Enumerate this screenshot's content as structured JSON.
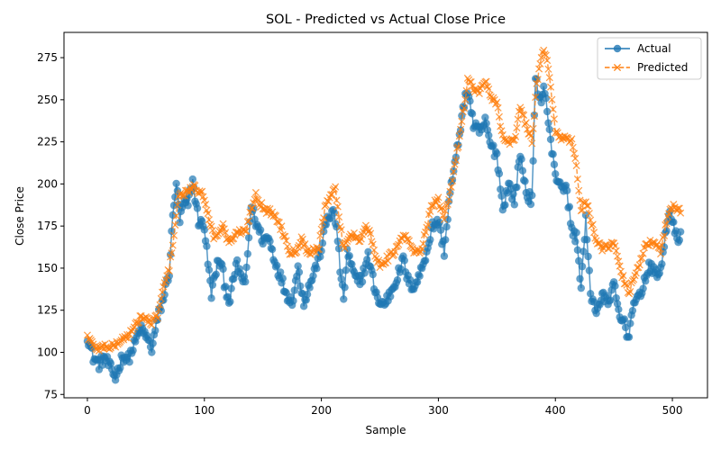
{
  "chart_data": {
    "type": "line",
    "title": "SOL - Predicted vs Actual Close Price",
    "xlabel": "Sample",
    "ylabel": "Close Price",
    "xlim": [
      -20,
      530
    ],
    "ylim": [
      73,
      290
    ],
    "x_ticks": [
      0,
      100,
      200,
      300,
      400,
      500
    ],
    "y_ticks": [
      75,
      100,
      125,
      150,
      175,
      200,
      225,
      250,
      275
    ],
    "grid": false,
    "legend_position": "top-right",
    "sample_count": 508,
    "series": [
      {
        "name": "Actual",
        "color": "#1f77b4",
        "marker": "circle",
        "linestyle": "solid",
        "anchors": [
          [
            0,
            110
          ],
          [
            5,
            97
          ],
          [
            10,
            93
          ],
          [
            15,
            97
          ],
          [
            20,
            90
          ],
          [
            24,
            85
          ],
          [
            30,
            98
          ],
          [
            35,
            96
          ],
          [
            40,
            104
          ],
          [
            45,
            114
          ],
          [
            50,
            110
          ],
          [
            55,
            102
          ],
          [
            60,
            120
          ],
          [
            65,
            132
          ],
          [
            70,
            148
          ],
          [
            73,
            180
          ],
          [
            76,
            201
          ],
          [
            79,
            178
          ],
          [
            82,
            188
          ],
          [
            86,
            188
          ],
          [
            90,
            202
          ],
          [
            95,
            178
          ],
          [
            100,
            175
          ],
          [
            103,
            153
          ],
          [
            106,
            135
          ],
          [
            109,
            145
          ],
          [
            112,
            155
          ],
          [
            115,
            150
          ],
          [
            118,
            138
          ],
          [
            122,
            130
          ],
          [
            125,
            145
          ],
          [
            128,
            152
          ],
          [
            131,
            146
          ],
          [
            135,
            140
          ],
          [
            140,
            187
          ],
          [
            145,
            175
          ],
          [
            150,
            167
          ],
          [
            155,
            168
          ],
          [
            160,
            155
          ],
          [
            165,
            145
          ],
          [
            170,
            135
          ],
          [
            175,
            130
          ],
          [
            180,
            150
          ],
          [
            185,
            130
          ],
          [
            190,
            140
          ],
          [
            195,
            150
          ],
          [
            200,
            162
          ],
          [
            205,
            180
          ],
          [
            210,
            183
          ],
          [
            213,
            175
          ],
          [
            216,
            150
          ],
          [
            219,
            130
          ],
          [
            222,
            160
          ],
          [
            226,
            150
          ],
          [
            230,
            142
          ],
          [
            235,
            145
          ],
          [
            240,
            157
          ],
          [
            245,
            140
          ],
          [
            250,
            128
          ],
          [
            255,
            130
          ],
          [
            260,
            137
          ],
          [
            265,
            145
          ],
          [
            270,
            155
          ],
          [
            275,
            140
          ],
          [
            280,
            140
          ],
          [
            285,
            148
          ],
          [
            290,
            160
          ],
          [
            295,
            175
          ],
          [
            300,
            178
          ],
          [
            305,
            160
          ],
          [
            310,
            195
          ],
          [
            315,
            215
          ],
          [
            320,
            240
          ],
          [
            325,
            257
          ],
          [
            330,
            235
          ],
          [
            335,
            230
          ],
          [
            340,
            237
          ],
          [
            345,
            222
          ],
          [
            350,
            218
          ],
          [
            355,
            185
          ],
          [
            360,
            200
          ],
          [
            365,
            190
          ],
          [
            370,
            218
          ],
          [
            375,
            195
          ],
          [
            380,
            190
          ],
          [
            383,
            262
          ],
          [
            387,
            250
          ],
          [
            391,
            257
          ],
          [
            395,
            230
          ],
          [
            400,
            205
          ],
          [
            405,
            200
          ],
          [
            410,
            195
          ],
          [
            414,
            172
          ],
          [
            418,
            168
          ],
          [
            422,
            140
          ],
          [
            426,
            178
          ],
          [
            430,
            135
          ],
          [
            435,
            125
          ],
          [
            440,
            133
          ],
          [
            445,
            130
          ],
          [
            450,
            140
          ],
          [
            455,
            120
          ],
          [
            460,
            118
          ],
          [
            462,
            106
          ],
          [
            466,
            128
          ],
          [
            470,
            130
          ],
          [
            475,
            140
          ],
          [
            480,
            150
          ],
          [
            485,
            148
          ],
          [
            490,
            147
          ],
          [
            494,
            170
          ],
          [
            497,
            184
          ],
          [
            500,
            176
          ],
          [
            504,
            168
          ],
          [
            507,
            170
          ]
        ]
      },
      {
        "name": "Predicted",
        "color": "#ff7f0e",
        "marker": "x",
        "linestyle": "dashed",
        "anchors": [
          [
            0,
            110
          ],
          [
            5,
            104
          ],
          [
            10,
            102
          ],
          [
            15,
            104
          ],
          [
            20,
            103
          ],
          [
            25,
            105
          ],
          [
            30,
            108
          ],
          [
            35,
            110
          ],
          [
            40,
            114
          ],
          [
            45,
            121
          ],
          [
            50,
            120
          ],
          [
            55,
            117
          ],
          [
            60,
            122
          ],
          [
            65,
            138
          ],
          [
            70,
            150
          ],
          [
            74,
            170
          ],
          [
            78,
            193
          ],
          [
            82,
            193
          ],
          [
            86,
            196
          ],
          [
            90,
            198
          ],
          [
            95,
            196
          ],
          [
            100,
            192
          ],
          [
            104,
            180
          ],
          [
            108,
            168
          ],
          [
            112,
            172
          ],
          [
            116,
            175
          ],
          [
            120,
            166
          ],
          [
            125,
            168
          ],
          [
            130,
            172
          ],
          [
            135,
            171
          ],
          [
            140,
            185
          ],
          [
            144,
            194
          ],
          [
            148,
            188
          ],
          [
            153,
            184
          ],
          [
            158,
            183
          ],
          [
            163,
            178
          ],
          [
            168,
            170
          ],
          [
            173,
            160
          ],
          [
            178,
            160
          ],
          [
            183,
            168
          ],
          [
            188,
            160
          ],
          [
            193,
            160
          ],
          [
            198,
            163
          ],
          [
            203,
            185
          ],
          [
            208,
            195
          ],
          [
            212,
            197
          ],
          [
            215,
            180
          ],
          [
            219,
            162
          ],
          [
            223,
            168
          ],
          [
            228,
            170
          ],
          [
            233,
            167
          ],
          [
            238,
            175
          ],
          [
            242,
            169
          ],
          [
            246,
            158
          ],
          [
            250,
            152
          ],
          [
            255,
            155
          ],
          [
            260,
            158
          ],
          [
            265,
            162
          ],
          [
            270,
            170
          ],
          [
            275,
            165
          ],
          [
            280,
            159
          ],
          [
            285,
            160
          ],
          [
            290,
            175
          ],
          [
            295,
            188
          ],
          [
            300,
            190
          ],
          [
            305,
            180
          ],
          [
            310,
            195
          ],
          [
            315,
            215
          ],
          [
            320,
            237
          ],
          [
            325,
            262
          ],
          [
            330,
            257
          ],
          [
            335,
            254
          ],
          [
            340,
            262
          ],
          [
            345,
            250
          ],
          [
            350,
            248
          ],
          [
            355,
            228
          ],
          [
            360,
            225
          ],
          [
            365,
            226
          ],
          [
            370,
            245
          ],
          [
            375,
            235
          ],
          [
            380,
            225
          ],
          [
            384,
            258
          ],
          [
            388,
            276
          ],
          [
            391,
            279
          ],
          [
            395,
            265
          ],
          [
            400,
            232
          ],
          [
            405,
            226
          ],
          [
            410,
            228
          ],
          [
            414,
            225
          ],
          [
            418,
            210
          ],
          [
            422,
            185
          ],
          [
            426,
            190
          ],
          [
            430,
            180
          ],
          [
            435,
            165
          ],
          [
            440,
            162
          ],
          [
            445,
            162
          ],
          [
            450,
            165
          ],
          [
            455,
            150
          ],
          [
            460,
            140
          ],
          [
            463,
            135
          ],
          [
            467,
            145
          ],
          [
            472,
            153
          ],
          [
            478,
            165
          ],
          [
            485,
            164
          ],
          [
            490,
            160
          ],
          [
            495,
            178
          ],
          [
            499,
            187
          ],
          [
            503,
            186
          ],
          [
            507,
            183
          ]
        ]
      }
    ]
  }
}
